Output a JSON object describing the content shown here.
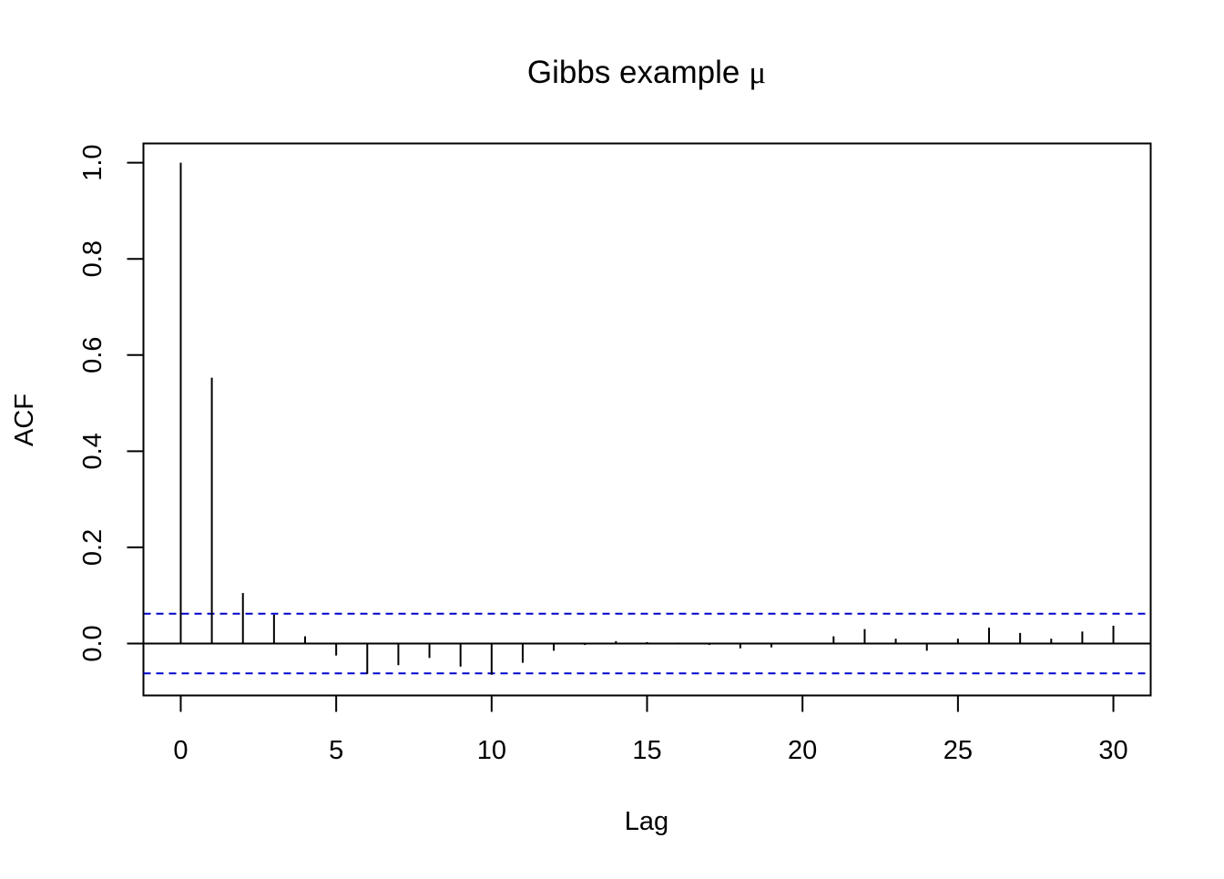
{
  "chart_data": {
    "type": "bar",
    "title": "Gibbs example",
    "title_symbol": "μ",
    "xlabel": "Lag",
    "ylabel": "ACF",
    "xlim": [
      -1.2,
      31.2
    ],
    "ylim": [
      -0.108,
      1.04
    ],
    "x_ticks": [
      "0",
      "5",
      "10",
      "15",
      "20",
      "25",
      "30"
    ],
    "y_ticks": [
      "0.0",
      "0.2",
      "0.4",
      "0.6",
      "0.8",
      "1.0"
    ],
    "confidence_bound": 0.062,
    "confidence_color": "#0000cc",
    "lags": [
      0,
      1,
      2,
      3,
      4,
      5,
      6,
      7,
      8,
      9,
      10,
      11,
      12,
      13,
      14,
      15,
      16,
      17,
      18,
      19,
      20,
      21,
      22,
      23,
      24,
      25,
      26,
      27,
      28,
      29,
      30
    ],
    "values": [
      1.0,
      0.553,
      0.105,
      0.06,
      0.015,
      -0.025,
      -0.063,
      -0.045,
      -0.03,
      -0.048,
      -0.065,
      -0.04,
      -0.015,
      -0.003,
      0.005,
      0.003,
      0.002,
      -0.003,
      -0.01,
      -0.008,
      -0.001,
      0.015,
      0.03,
      0.01,
      -0.015,
      0.01,
      0.033,
      0.022,
      0.01,
      0.025,
      0.037
    ],
    "grid": false
  }
}
